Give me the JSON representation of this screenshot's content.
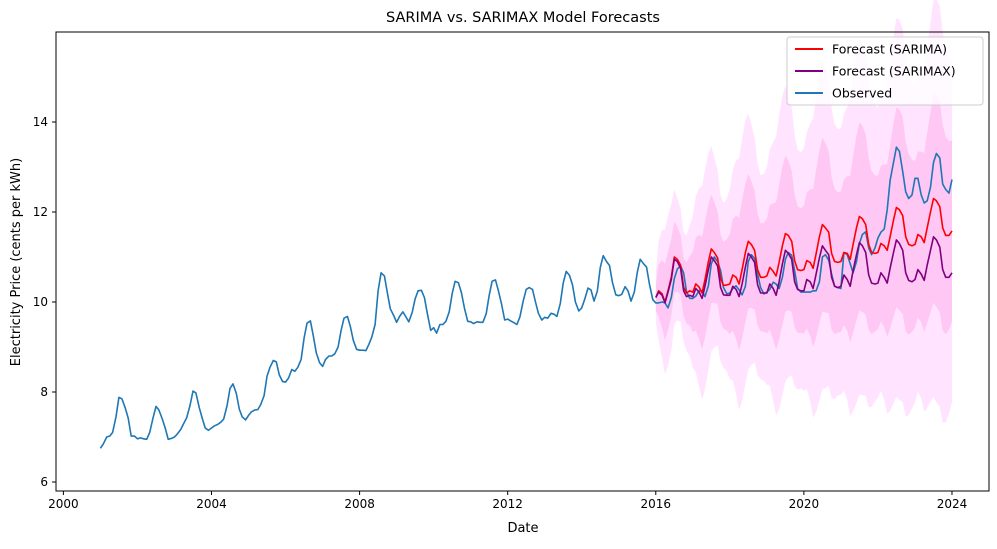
{
  "chart_data": {
    "type": "line",
    "title": "SARIMA vs. SARIMAX Model Forecasts",
    "xlabel": "Date",
    "ylabel": "Electricity Price (cents per kWh)",
    "xlim": [
      1999.8,
      2025.0
    ],
    "ylim": [
      5.8,
      16.0
    ],
    "x_ticks": [
      2000,
      2004,
      2008,
      2012,
      2016,
      2020,
      2024
    ],
    "y_ticks": [
      6,
      8,
      10,
      12,
      14
    ],
    "legend_position": "top-right",
    "observed": {
      "name": "Observed",
      "color": "#1f77b4",
      "x": [
        2001.0,
        2001.08,
        2001.17,
        2001.25,
        2001.33,
        2001.42,
        2001.5,
        2001.58,
        2001.67,
        2001.75,
        2001.83,
        2001.92,
        2002.0,
        2002.08,
        2002.17,
        2002.25,
        2002.33,
        2002.42,
        2002.5,
        2002.58,
        2002.67,
        2002.75,
        2002.83,
        2002.92,
        2003.0,
        2003.08,
        2003.17,
        2003.25,
        2003.33,
        2003.42,
        2003.5,
        2003.58,
        2003.67,
        2003.75,
        2003.83,
        2003.92,
        2004.0,
        2004.08,
        2004.17,
        2004.25,
        2004.33,
        2004.42,
        2004.5,
        2004.58,
        2004.67,
        2004.75,
        2004.83,
        2004.92,
        2005.0,
        2005.08,
        2005.17,
        2005.25,
        2005.33,
        2005.42,
        2005.5,
        2005.58,
        2005.67,
        2005.75,
        2005.83,
        2005.92,
        2006.0,
        2006.08,
        2006.17,
        2006.25,
        2006.33,
        2006.42,
        2006.5,
        2006.58,
        2006.67,
        2006.75,
        2006.83,
        2006.92,
        2007.0,
        2007.08,
        2007.17,
        2007.25,
        2007.33,
        2007.42,
        2007.5,
        2007.58,
        2007.67,
        2007.75,
        2007.83,
        2007.92,
        2008.0,
        2008.08,
        2008.17,
        2008.25,
        2008.33,
        2008.42,
        2008.5,
        2008.58,
        2008.67,
        2008.75,
        2008.83,
        2008.92,
        2009.0,
        2009.08,
        2009.17,
        2009.25,
        2009.33,
        2009.42,
        2009.5,
        2009.58,
        2009.67,
        2009.75,
        2009.83,
        2009.92,
        2010.0,
        2010.08,
        2010.17,
        2010.25,
        2010.33,
        2010.42,
        2010.5,
        2010.58,
        2010.67,
        2010.75,
        2010.83,
        2010.92,
        2011.0,
        2011.08,
        2011.17,
        2011.25,
        2011.33,
        2011.42,
        2011.5,
        2011.58,
        2011.67,
        2011.75,
        2011.83,
        2011.92,
        2012.0,
        2012.08,
        2012.17,
        2012.25,
        2012.33,
        2012.42,
        2012.5,
        2012.58,
        2012.67,
        2012.75,
        2012.83,
        2012.92,
        2013.0,
        2013.08,
        2013.17,
        2013.25,
        2013.33,
        2013.42,
        2013.5,
        2013.58,
        2013.67,
        2013.75,
        2013.83,
        2013.92,
        2014.0,
        2014.08,
        2014.17,
        2014.25,
        2014.33,
        2014.42,
        2014.5,
        2014.58,
        2014.67,
        2014.75,
        2014.83,
        2014.92,
        2015.0,
        2015.08,
        2015.17,
        2015.25,
        2015.33,
        2015.42,
        2015.5,
        2015.58,
        2015.67,
        2015.75,
        2015.83,
        2015.92,
        2016.0,
        2016.08,
        2016.17,
        2016.25,
        2016.33,
        2016.42,
        2016.5,
        2016.58,
        2016.67,
        2016.75,
        2016.83,
        2016.92,
        2017.0,
        2017.08,
        2017.17,
        2017.25,
        2017.33,
        2017.42,
        2017.5,
        2017.58,
        2017.67,
        2017.75,
        2017.83,
        2017.92,
        2018.0,
        2018.08,
        2018.17,
        2018.25,
        2018.33,
        2018.42,
        2018.5,
        2018.58,
        2018.67,
        2018.75,
        2018.83,
        2018.92,
        2019.0,
        2019.08,
        2019.17,
        2019.25,
        2019.33,
        2019.42,
        2019.5,
        2019.58,
        2019.67,
        2019.75,
        2019.83,
        2019.92,
        2020.0,
        2020.08,
        2020.17,
        2020.25,
        2020.33,
        2020.42,
        2020.5,
        2020.58,
        2020.67,
        2020.75,
        2020.83,
        2020.92,
        2021.0,
        2021.08,
        2021.17,
        2021.25,
        2021.33,
        2021.42,
        2021.5,
        2021.58,
        2021.67,
        2021.75,
        2021.83,
        2021.92,
        2022.0,
        2022.08,
        2022.17,
        2022.25,
        2022.33,
        2022.42,
        2022.5,
        2022.58,
        2022.67,
        2022.75,
        2022.83,
        2022.92,
        2023.0,
        2023.08,
        2023.17,
        2023.25,
        2023.33,
        2023.42,
        2023.5,
        2023.58,
        2023.67,
        2023.75,
        2023.83,
        2023.92,
        2024.0
      ],
      "y": [
        6.75,
        6.85,
        7.0,
        7.02,
        7.1,
        7.45,
        7.88,
        7.85,
        7.65,
        7.42,
        7.02,
        7.02,
        6.96,
        6.98,
        6.96,
        6.95,
        7.1,
        7.42,
        7.68,
        7.6,
        7.4,
        7.2,
        6.95,
        6.97,
        7.0,
        7.07,
        7.17,
        7.3,
        7.43,
        7.7,
        8.02,
        7.98,
        7.65,
        7.42,
        7.2,
        7.15,
        7.2,
        7.25,
        7.28,
        7.33,
        7.4,
        7.7,
        8.08,
        8.18,
        7.97,
        7.62,
        7.45,
        7.38,
        7.48,
        7.56,
        7.6,
        7.61,
        7.72,
        7.92,
        8.35,
        8.55,
        8.7,
        8.67,
        8.38,
        8.23,
        8.22,
        8.31,
        8.5,
        8.46,
        8.55,
        8.72,
        9.2,
        9.53,
        9.58,
        9.25,
        8.87,
        8.65,
        8.57,
        8.72,
        8.8,
        8.8,
        8.85,
        9.0,
        9.37,
        9.64,
        9.68,
        9.46,
        9.15,
        8.95,
        8.93,
        8.93,
        8.92,
        9.06,
        9.22,
        9.5,
        10.25,
        10.65,
        10.58,
        10.2,
        9.85,
        9.7,
        9.55,
        9.68,
        9.78,
        9.67,
        9.56,
        9.77,
        10.07,
        10.25,
        10.26,
        10.1,
        9.75,
        9.37,
        9.43,
        9.31,
        9.5,
        9.5,
        9.57,
        9.78,
        10.19,
        10.46,
        10.43,
        10.21,
        9.87,
        9.57,
        9.56,
        9.52,
        9.56,
        9.55,
        9.55,
        9.74,
        10.15,
        10.46,
        10.49,
        10.25,
        9.97,
        9.6,
        9.62,
        9.58,
        9.54,
        9.5,
        9.67,
        10.02,
        10.28,
        10.32,
        10.28,
        10.0,
        9.75,
        9.6,
        9.66,
        9.64,
        9.75,
        9.73,
        9.68,
        9.97,
        10.42,
        10.68,
        10.59,
        10.38,
        10.0,
        9.8,
        9.87,
        10.06,
        10.31,
        10.27,
        10.02,
        10.24,
        10.77,
        11.03,
        10.9,
        10.81,
        10.43,
        10.16,
        10.14,
        10.17,
        10.34,
        10.25,
        10.02,
        10.22,
        10.66,
        10.95,
        10.85,
        10.78,
        10.39,
        10.05,
        9.98,
        9.98,
        10.0,
        9.98,
        9.87,
        10.1,
        10.52,
        10.73,
        10.8,
        10.65,
        10.23,
        10.08,
        10.08,
        10.13,
        10.25,
        10.25,
        10.12,
        10.36,
        10.85,
        11.0,
        10.9,
        10.7,
        10.32,
        10.18,
        10.2,
        10.3,
        10.36,
        10.27,
        10.16,
        10.35,
        10.9,
        11.05,
        10.97,
        10.62,
        10.32,
        10.18,
        10.22,
        10.28,
        10.44,
        10.4,
        10.3,
        10.55,
        10.95,
        11.1,
        11.04,
        10.7,
        10.3,
        10.22,
        10.22,
        10.22,
        10.22,
        10.25,
        10.25,
        10.45,
        11.0,
        11.05,
        10.93,
        10.62,
        10.35,
        10.32,
        10.3,
        11.1,
        11.05,
        10.85,
        10.65,
        10.9,
        11.3,
        11.5,
        11.56,
        11.2,
        11.05,
        11.2,
        11.42,
        11.55,
        11.62,
        12.05,
        12.7,
        13.1,
        13.44,
        13.35,
        12.9,
        12.45,
        12.3,
        12.38,
        12.75,
        12.75,
        12.38,
        12.2,
        12.25,
        12.55,
        13.1,
        13.3,
        13.2,
        12.62,
        12.5,
        12.42,
        12.72
      ]
    },
    "sarima": {
      "name": "Forecast (SARIMA)",
      "color": "#ff0000",
      "x": [
        2016.0,
        2016.08,
        2016.17,
        2016.25,
        2016.33,
        2016.42,
        2016.5,
        2016.58,
        2016.67,
        2016.75,
        2016.83,
        2016.92,
        2017.0,
        2017.08,
        2017.17,
        2017.25,
        2017.33,
        2017.42,
        2017.5,
        2017.58,
        2017.67,
        2017.75,
        2017.83,
        2017.92,
        2018.0,
        2018.08,
        2018.17,
        2018.25,
        2018.33,
        2018.42,
        2018.5,
        2018.58,
        2018.67,
        2018.75,
        2018.83,
        2018.92,
        2019.0,
        2019.08,
        2019.17,
        2019.25,
        2019.33,
        2019.42,
        2019.5,
        2019.58,
        2019.67,
        2019.75,
        2019.83,
        2019.92,
        2020.0,
        2020.08,
        2020.17,
        2020.25,
        2020.33,
        2020.42,
        2020.5,
        2020.58,
        2020.67,
        2020.75,
        2020.83,
        2020.92,
        2021.0,
        2021.08,
        2021.17,
        2021.25,
        2021.33,
        2021.42,
        2021.5,
        2021.58,
        2021.67,
        2021.75,
        2021.83,
        2021.92,
        2022.0,
        2022.08,
        2022.17,
        2022.25,
        2022.33,
        2022.42,
        2022.5,
        2022.58,
        2022.67,
        2022.75,
        2022.83,
        2022.92,
        2023.0,
        2023.08,
        2023.17,
        2023.25,
        2023.33,
        2023.42,
        2023.5,
        2023.58,
        2023.67,
        2023.75,
        2023.83,
        2023.92,
        2024.0
      ],
      "y": [
        10.1,
        10.25,
        10.18,
        10.0,
        10.25,
        10.55,
        11.0,
        10.95,
        10.82,
        10.33,
        10.2,
        10.25,
        10.22,
        10.4,
        10.33,
        10.2,
        10.5,
        10.9,
        11.18,
        11.1,
        10.98,
        10.52,
        10.37,
        10.38,
        10.4,
        10.6,
        10.55,
        10.4,
        10.72,
        11.1,
        11.35,
        11.28,
        11.15,
        10.72,
        10.55,
        10.55,
        10.58,
        10.77,
        10.68,
        10.58,
        10.88,
        11.25,
        11.52,
        11.48,
        11.35,
        10.92,
        10.72,
        10.7,
        10.72,
        10.92,
        10.88,
        10.75,
        11.07,
        11.45,
        11.72,
        11.65,
        11.55,
        11.08,
        10.9,
        10.88,
        10.9,
        11.1,
        11.08,
        10.95,
        11.28,
        11.65,
        11.9,
        11.85,
        11.72,
        11.28,
        11.1,
        11.08,
        11.1,
        11.3,
        11.25,
        11.15,
        11.45,
        11.82,
        12.1,
        12.05,
        11.92,
        11.45,
        11.28,
        11.25,
        11.28,
        11.5,
        11.45,
        11.32,
        11.65,
        12.0,
        12.3,
        12.25,
        12.12,
        11.65,
        11.48,
        11.48,
        11.58
      ]
    },
    "sarimax": {
      "name": "Forecast (SARIMAX)",
      "color": "#800080",
      "x": [
        2016.0,
        2016.08,
        2016.17,
        2016.25,
        2016.33,
        2016.42,
        2016.5,
        2016.58,
        2016.67,
        2016.75,
        2016.83,
        2016.92,
        2017.0,
        2017.08,
        2017.17,
        2017.25,
        2017.33,
        2017.42,
        2017.5,
        2017.58,
        2017.67,
        2017.75,
        2017.83,
        2017.92,
        2018.0,
        2018.08,
        2018.17,
        2018.25,
        2018.33,
        2018.42,
        2018.5,
        2018.58,
        2018.67,
        2018.75,
        2018.83,
        2018.92,
        2019.0,
        2019.08,
        2019.17,
        2019.25,
        2019.33,
        2019.42,
        2019.5,
        2019.58,
        2019.67,
        2019.75,
        2019.83,
        2019.92,
        2020.0,
        2020.08,
        2020.17,
        2020.25,
        2020.33,
        2020.42,
        2020.5,
        2020.58,
        2020.67,
        2020.75,
        2020.83,
        2020.92,
        2021.0,
        2021.08,
        2021.17,
        2021.25,
        2021.33,
        2021.42,
        2021.5,
        2021.58,
        2021.67,
        2021.75,
        2021.83,
        2021.92,
        2022.0,
        2022.08,
        2022.17,
        2022.25,
        2022.33,
        2022.42,
        2022.5,
        2022.58,
        2022.67,
        2022.75,
        2022.83,
        2022.92,
        2023.0,
        2023.08,
        2023.17,
        2023.25,
        2023.33,
        2023.42,
        2023.5,
        2023.58,
        2023.67,
        2023.75,
        2023.83,
        2023.92,
        2024.0
      ],
      "y": [
        10.1,
        10.22,
        10.15,
        9.98,
        10.22,
        10.5,
        10.95,
        10.9,
        10.75,
        10.25,
        10.12,
        10.15,
        10.12,
        10.3,
        10.22,
        10.08,
        10.35,
        10.72,
        11.0,
        10.92,
        10.8,
        10.32,
        10.16,
        10.15,
        10.15,
        10.35,
        10.28,
        10.12,
        10.4,
        10.78,
        11.08,
        11.0,
        10.88,
        10.38,
        10.2,
        10.2,
        10.2,
        10.4,
        10.3,
        10.15,
        10.45,
        10.85,
        11.15,
        11.08,
        10.95,
        10.45,
        10.28,
        10.25,
        10.25,
        10.5,
        10.45,
        10.3,
        10.62,
        10.98,
        11.25,
        11.15,
        11.05,
        10.55,
        10.35,
        10.32,
        10.35,
        10.6,
        10.5,
        10.35,
        10.7,
        11.05,
        11.32,
        11.25,
        11.1,
        10.6,
        10.42,
        10.4,
        10.42,
        10.65,
        10.55,
        10.42,
        10.75,
        11.1,
        11.38,
        11.3,
        11.15,
        10.65,
        10.48,
        10.45,
        10.5,
        10.72,
        10.62,
        10.48,
        10.82,
        11.15,
        11.45,
        11.38,
        11.22,
        10.72,
        10.55,
        10.55,
        10.65
      ]
    }
  },
  "legend": {
    "items": [
      {
        "label": "Forecast (SARIMA)",
        "color": "#ff0000"
      },
      {
        "label": "Forecast (SARIMAX)",
        "color": "#800080"
      },
      {
        "label": "Observed",
        "color": "#1f77b4"
      }
    ]
  },
  "bands": {
    "inner_color": "#ff66cc",
    "outer_color": "#ff99ff"
  }
}
